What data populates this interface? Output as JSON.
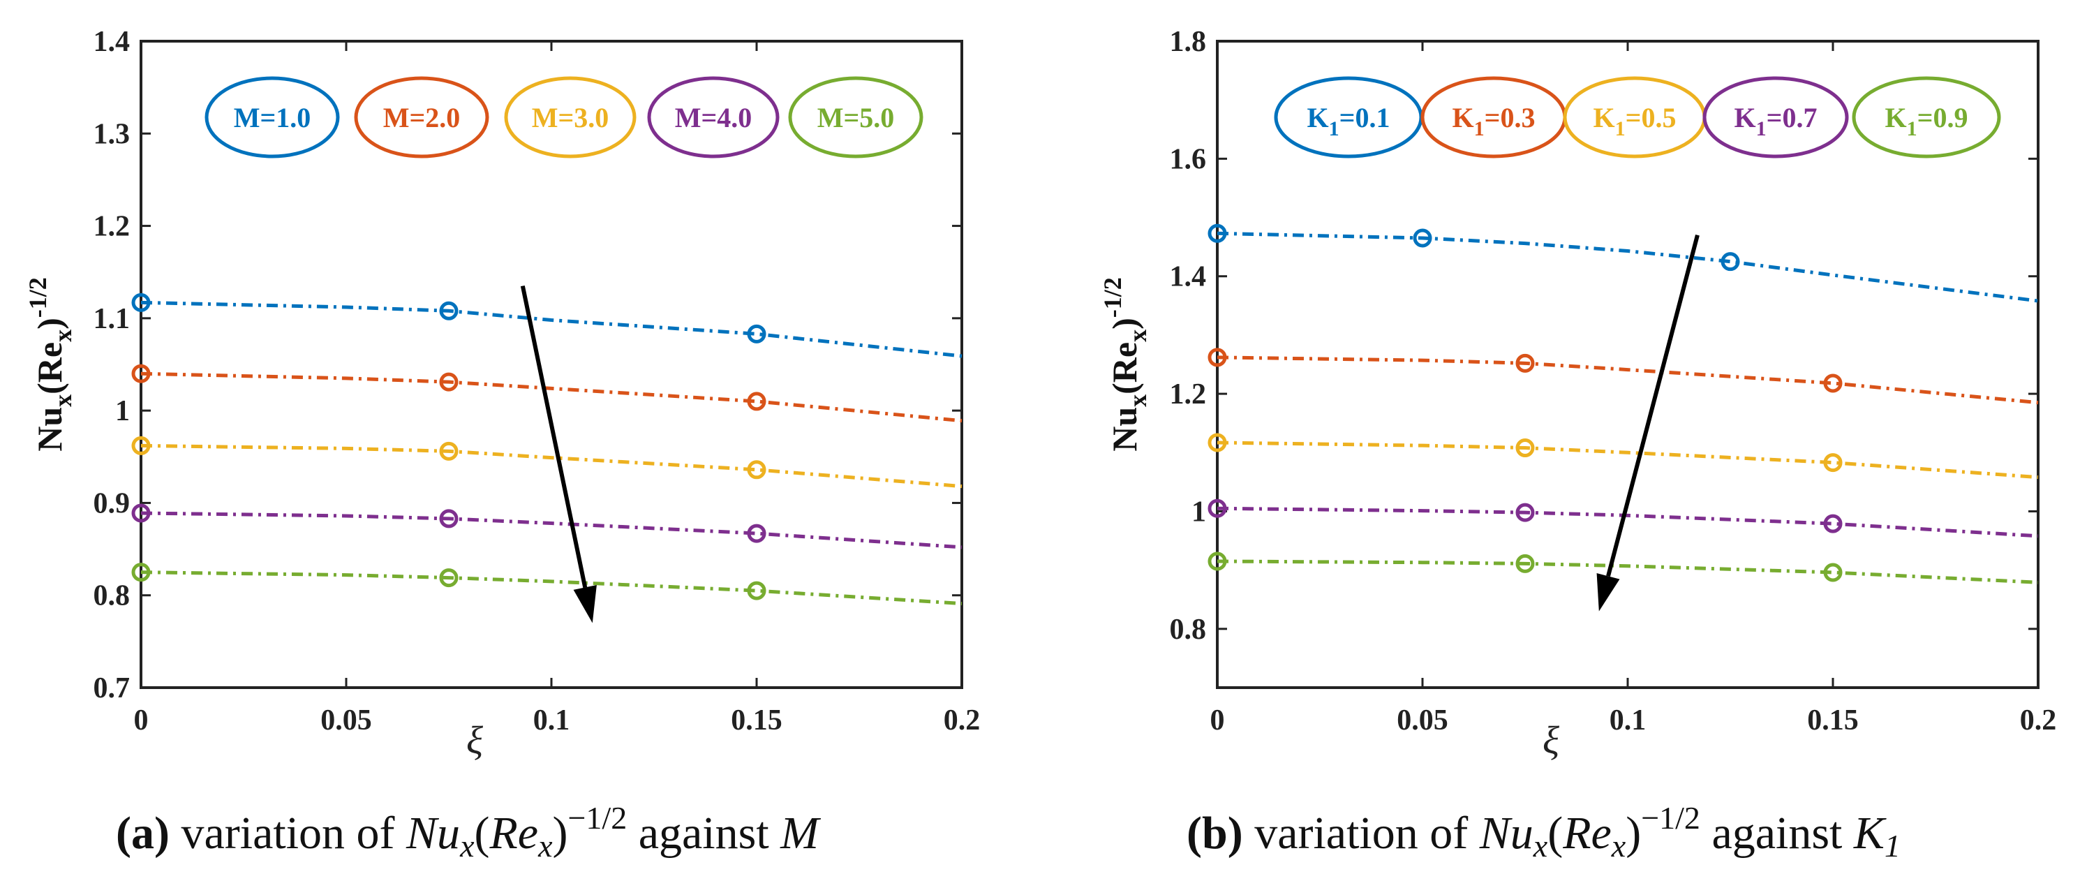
{
  "chart_data": [
    {
      "type": "line",
      "panel_label": "(a)",
      "caption": {
        "label_open": "(",
        "label_letter": "a",
        "label_close": ")",
        "t1": " variation of ",
        "m1": "Nu",
        "s1": "x",
        "m2": "(",
        "m3": "Re",
        "s2": "x",
        "m4": ")",
        "sup": "−1/2",
        "t2": " against ",
        "var": "M",
        "var_sub": ""
      },
      "ylabel": {
        "main": "Nu",
        "sub1": "x",
        "paren_open": "(Re",
        "sub2": "x",
        "paren_close": ")",
        "sup": "-1/2"
      },
      "xlabel": "ξ",
      "xlim": [
        0,
        0.2
      ],
      "ylim": [
        0.7,
        1.4
      ],
      "xticks": [
        0,
        0.05,
        0.1,
        0.15,
        0.2
      ],
      "xtick_labels": [
        "0",
        "0.05",
        "0.1",
        "0.15",
        "0.2"
      ],
      "yticks": [
        0.7,
        0.8,
        0.9,
        1.0,
        1.1,
        1.2,
        1.3,
        1.4
      ],
      "ytick_labels": [
        "0.7",
        "0.8",
        "0.9",
        "1",
        "1.1",
        "1.2",
        "1.3",
        "1.4"
      ],
      "arrow": {
        "from": [
          0.093,
          1.135
        ],
        "to": [
          0.11,
          0.77
        ]
      },
      "series": [
        {
          "name": "M=1.0",
          "legend_main": "M=1.0",
          "legend_sub": "",
          "legend_rest": "",
          "color": "#0072BD",
          "x": [
            0,
            0.05,
            0.075,
            0.1,
            0.15,
            0.2
          ],
          "y": [
            1.117,
            1.112,
            1.108,
            1.098,
            1.083,
            1.059
          ],
          "markers_x": [
            0,
            0.075,
            0.15
          ]
        },
        {
          "name": "M=2.0",
          "legend_main": "M=2.0",
          "legend_sub": "",
          "legend_rest": "",
          "color": "#D95319",
          "x": [
            0,
            0.05,
            0.075,
            0.1,
            0.15,
            0.2
          ],
          "y": [
            1.04,
            1.035,
            1.031,
            1.024,
            1.01,
            0.989
          ],
          "markers_x": [
            0,
            0.075,
            0.15
          ]
        },
        {
          "name": "M=3.0",
          "legend_main": "M=3.0",
          "legend_sub": "",
          "legend_rest": "",
          "color": "#EDB120",
          "x": [
            0,
            0.05,
            0.075,
            0.1,
            0.15,
            0.2
          ],
          "y": [
            0.962,
            0.959,
            0.956,
            0.949,
            0.936,
            0.918
          ],
          "markers_x": [
            0,
            0.075,
            0.15
          ]
        },
        {
          "name": "M=4.0",
          "legend_main": "M=4.0",
          "legend_sub": "",
          "legend_rest": "",
          "color": "#7E2F8E",
          "x": [
            0,
            0.05,
            0.075,
            0.1,
            0.15,
            0.2
          ],
          "y": [
            0.889,
            0.886,
            0.883,
            0.878,
            0.867,
            0.852
          ],
          "markers_x": [
            0,
            0.075,
            0.15
          ]
        },
        {
          "name": "M=5.0",
          "legend_main": "M=5.0",
          "legend_sub": "",
          "legend_rest": "",
          "color": "#77AC30",
          "x": [
            0,
            0.05,
            0.075,
            0.1,
            0.15,
            0.2
          ],
          "y": [
            0.825,
            0.822,
            0.819,
            0.815,
            0.805,
            0.791
          ],
          "markers_x": [
            0,
            0.075,
            0.15
          ]
        }
      ]
    },
    {
      "type": "line",
      "panel_label": "(b)",
      "caption": {
        "label_open": "(",
        "label_letter": "b",
        "label_close": ")",
        "t1": " variation of ",
        "m1": "Nu",
        "s1": "x",
        "m2": "(",
        "m3": "Re",
        "s2": "x",
        "m4": ")",
        "sup": "−1/2",
        "t2": " against ",
        "var": "K",
        "var_sub": "1"
      },
      "ylabel": {
        "main": "Nu",
        "sub1": "x",
        "paren_open": "(Re",
        "sub2": "x",
        "paren_close": ")",
        "sup": "-1/2"
      },
      "xlabel": "ξ",
      "xlim": [
        0,
        0.2
      ],
      "ylim": [
        0.7,
        1.8
      ],
      "xticks": [
        0,
        0.05,
        0.1,
        0.15,
        0.2
      ],
      "xtick_labels": [
        "0",
        "0.05",
        "0.1",
        "0.15",
        "0.2"
      ],
      "yticks": [
        0.8,
        1.0,
        1.2,
        1.4,
        1.6,
        1.8
      ],
      "ytick_labels": [
        "0.8",
        "1",
        "1.2",
        "1.4",
        "1.6",
        "1.8"
      ],
      "arrow": {
        "from": [
          0.117,
          1.47
        ],
        "to": [
          0.093,
          0.83
        ]
      },
      "series": [
        {
          "name": "K1=0.1",
          "legend_main": "K",
          "legend_sub": "1",
          "legend_rest": "=0.1",
          "color": "#0072BD",
          "x": [
            0,
            0.05,
            0.075,
            0.1,
            0.125,
            0.15,
            0.2
          ],
          "y": [
            1.473,
            1.465,
            1.456,
            1.443,
            1.425,
            1.402,
            1.358
          ],
          "markers_x": [
            0,
            0.05,
            0.125
          ]
        },
        {
          "name": "K1=0.3",
          "legend_main": "K",
          "legend_sub": "1",
          "legend_rest": "=0.3",
          "color": "#D95319",
          "x": [
            0,
            0.05,
            0.075,
            0.1,
            0.15,
            0.2
          ],
          "y": [
            1.262,
            1.257,
            1.252,
            1.241,
            1.218,
            1.185
          ],
          "markers_x": [
            0,
            0.075,
            0.15
          ]
        },
        {
          "name": "K1=0.5",
          "legend_main": "K",
          "legend_sub": "1",
          "legend_rest": "=0.5",
          "color": "#EDB120",
          "x": [
            0,
            0.05,
            0.075,
            0.1,
            0.15,
            0.2
          ],
          "y": [
            1.117,
            1.112,
            1.108,
            1.1,
            1.083,
            1.058
          ],
          "markers_x": [
            0,
            0.075,
            0.15
          ]
        },
        {
          "name": "K1=0.7",
          "legend_main": "K",
          "legend_sub": "1",
          "legend_rest": "=0.7",
          "color": "#7E2F8E",
          "x": [
            0,
            0.05,
            0.075,
            0.1,
            0.15,
            0.2
          ],
          "y": [
            1.005,
            1.001,
            0.998,
            0.993,
            0.979,
            0.958
          ],
          "markers_x": [
            0,
            0.075,
            0.15
          ]
        },
        {
          "name": "K1=0.9",
          "legend_main": "K",
          "legend_sub": "1",
          "legend_rest": "=0.9",
          "color": "#77AC30",
          "x": [
            0,
            0.05,
            0.075,
            0.1,
            0.15,
            0.2
          ],
          "y": [
            0.915,
            0.913,
            0.911,
            0.907,
            0.896,
            0.879
          ],
          "markers_x": [
            0,
            0.075,
            0.15
          ]
        }
      ]
    }
  ]
}
